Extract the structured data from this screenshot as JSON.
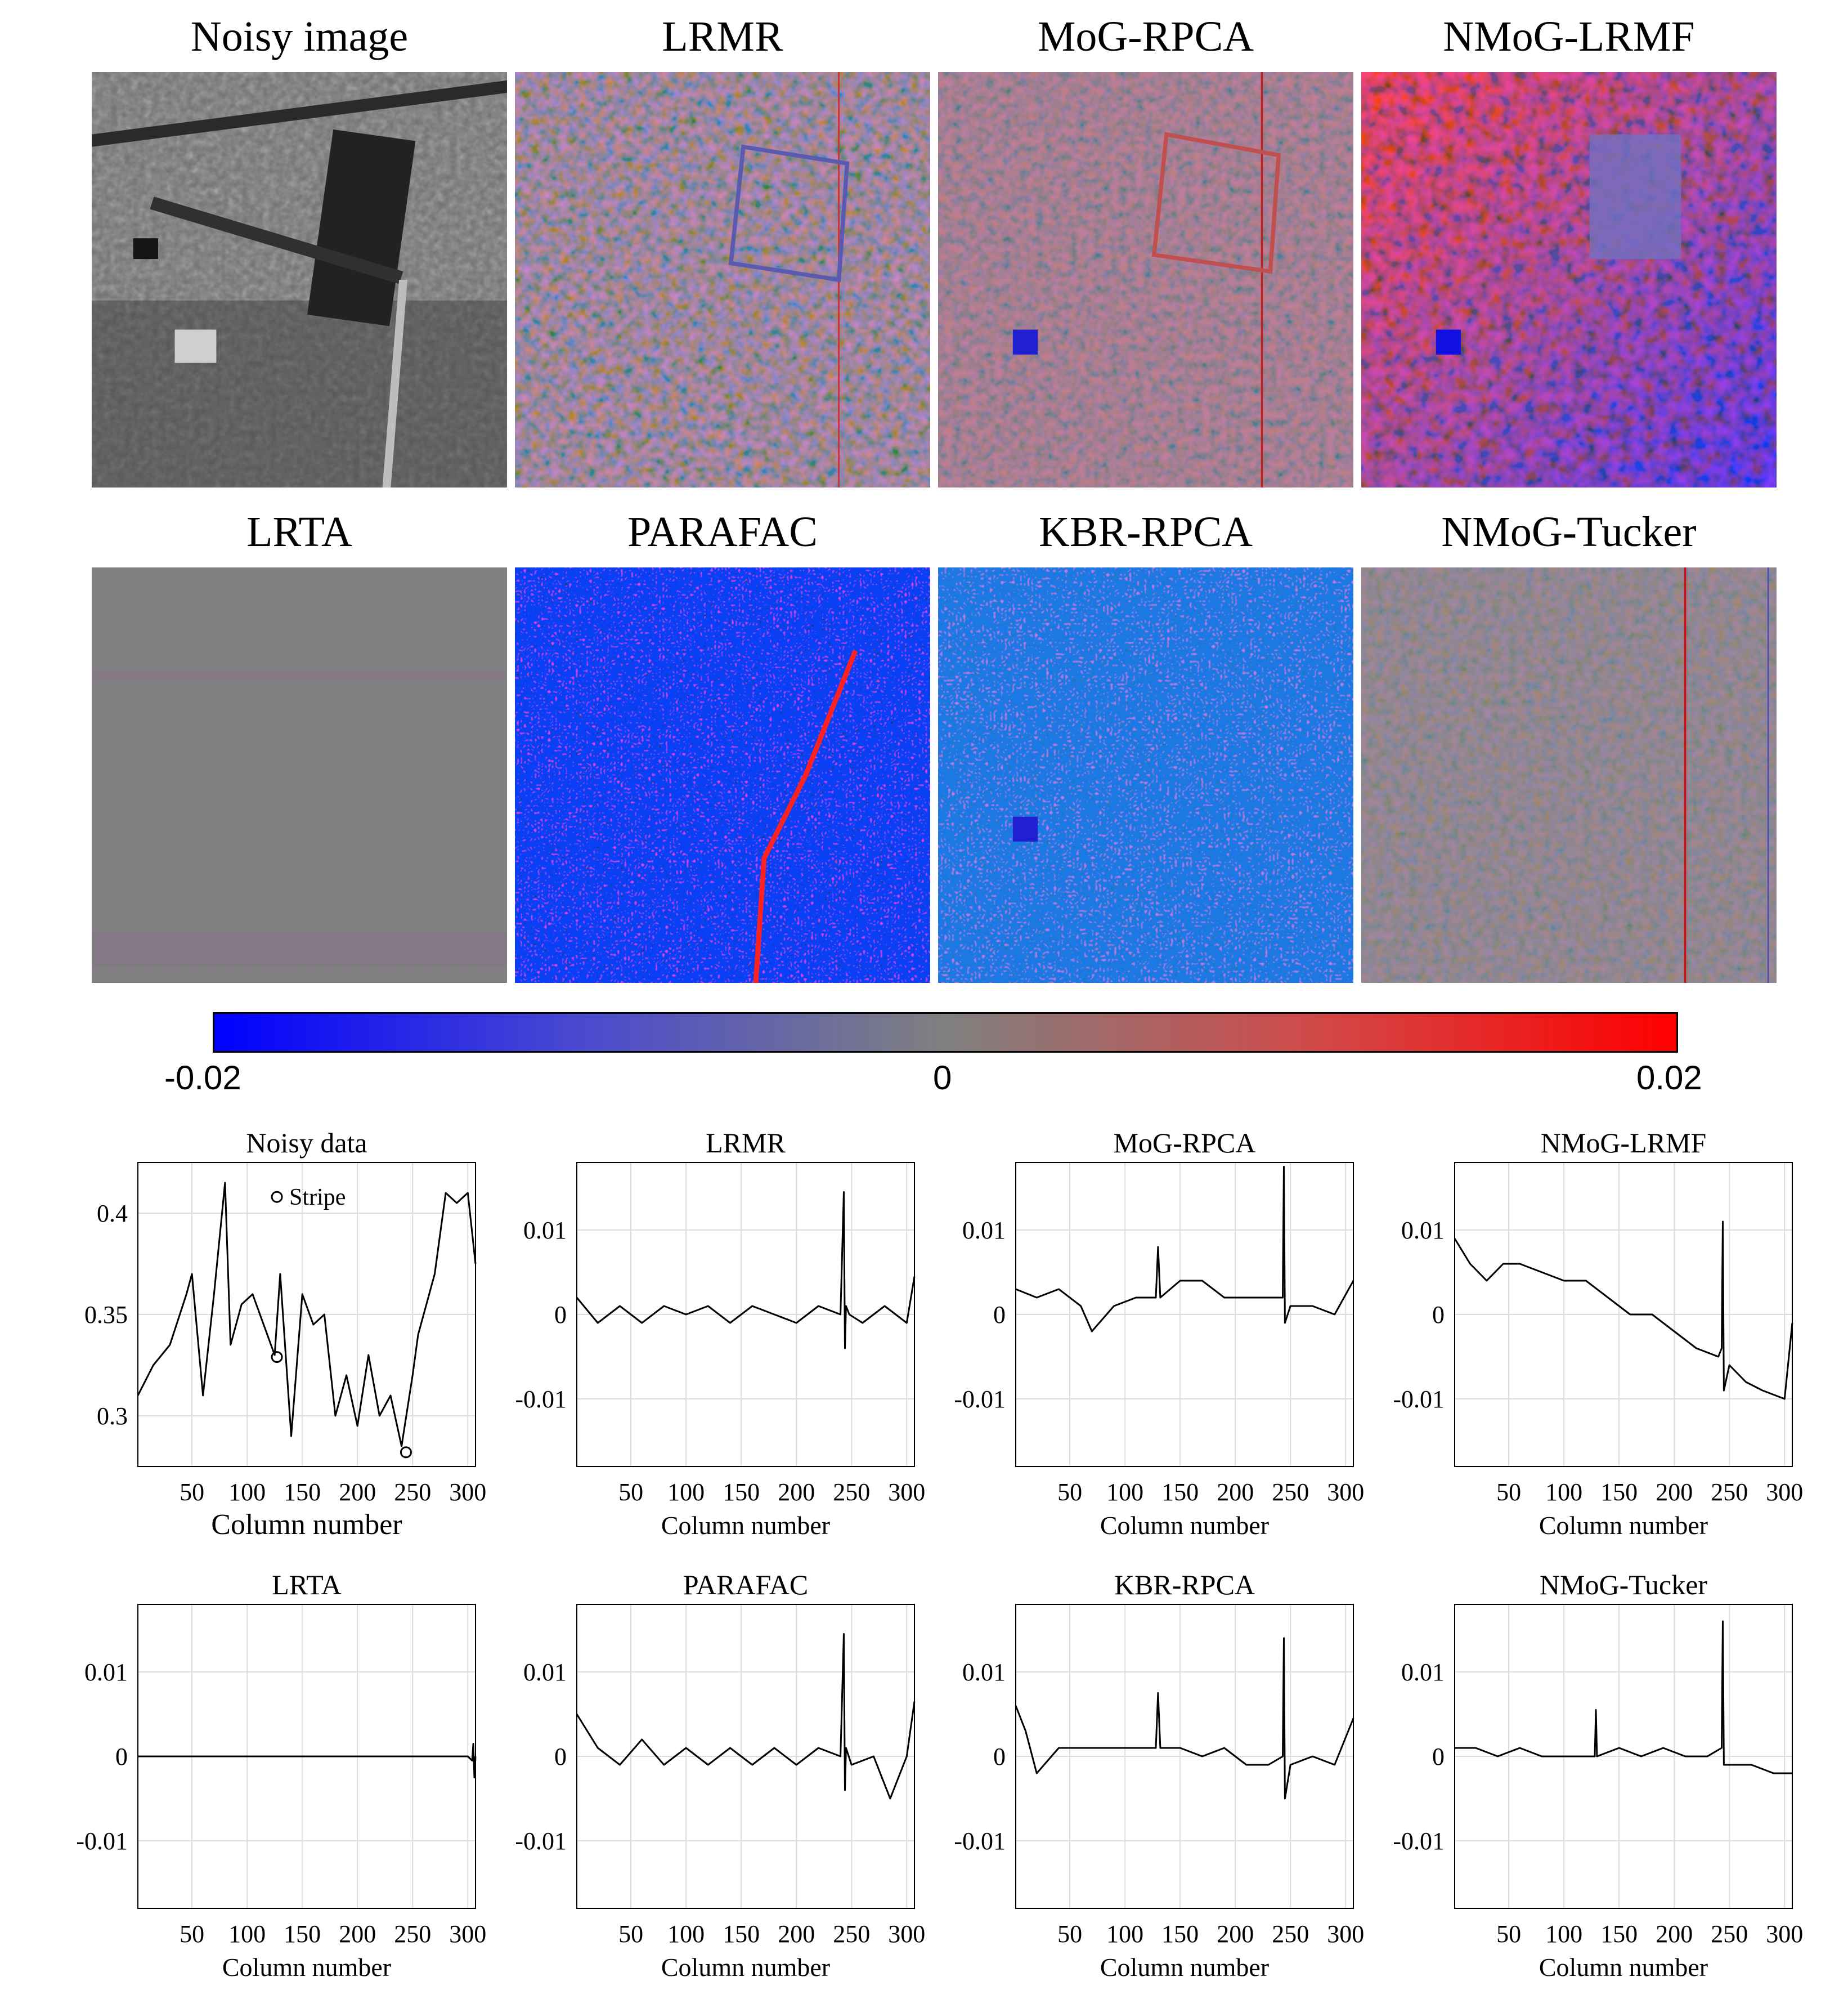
{
  "image_panels": [
    {
      "title": "Noisy image",
      "kind": "gray"
    },
    {
      "title": "LRMR",
      "kind": "mixed"
    },
    {
      "title": "MoG-RPCA",
      "kind": "reddish"
    },
    {
      "title": "NMoG-LRMF",
      "kind": "strong"
    },
    {
      "title": "LRTA",
      "kind": "flat"
    },
    {
      "title": "PARAFAC",
      "kind": "noisy"
    },
    {
      "title": "KBR-RPCA",
      "kind": "noisy2"
    },
    {
      "title": "NMoG-Tucker",
      "kind": "faint"
    }
  ],
  "colorbar": {
    "min_label": "-0.02",
    "mid_label": "0",
    "max_label": "0.02",
    "colors": [
      "#0000ff",
      "#808080",
      "#ff0000"
    ]
  },
  "chart_data": [
    {
      "type": "line",
      "title": "Noisy data",
      "xlabel": "Column number",
      "xlim": [
        1,
        307
      ],
      "ylim": [
        0.275,
        0.425
      ],
      "yticks": [
        0.3,
        0.35,
        0.4
      ],
      "ytick_labels": [
        "0.3",
        "0.35",
        "0.4"
      ],
      "xticks": [
        50,
        100,
        150,
        200,
        250,
        300
      ],
      "x": [
        1,
        15,
        30,
        45,
        50,
        60,
        70,
        80,
        85,
        95,
        105,
        115,
        125,
        130,
        140,
        150,
        160,
        170,
        180,
        190,
        200,
        210,
        220,
        230,
        240,
        250,
        255,
        270,
        280,
        290,
        300,
        307
      ],
      "values": [
        0.31,
        0.325,
        0.335,
        0.36,
        0.37,
        0.31,
        0.36,
        0.415,
        0.335,
        0.355,
        0.36,
        0.345,
        0.33,
        0.37,
        0.29,
        0.36,
        0.345,
        0.35,
        0.3,
        0.32,
        0.295,
        0.33,
        0.3,
        0.31,
        0.285,
        0.32,
        0.34,
        0.37,
        0.41,
        0.405,
        0.41,
        0.375
      ],
      "legend": "Stripe",
      "stripe_markers": [
        {
          "x": 127,
          "y": 0.329
        },
        {
          "x": 244,
          "y": 0.282
        }
      ]
    },
    {
      "type": "line",
      "title": "LRMR",
      "xlabel": "Column number",
      "xlim": [
        1,
        307
      ],
      "ylim": [
        -0.018,
        0.018
      ],
      "yticks": [
        -0.01,
        0,
        0.01
      ],
      "ytick_labels": [
        "-0.01",
        "0",
        "0.01"
      ],
      "xticks": [
        50,
        100,
        150,
        200,
        250,
        300
      ],
      "x": [
        1,
        20,
        40,
        60,
        80,
        100,
        120,
        140,
        160,
        180,
        200,
        220,
        240,
        243,
        244,
        245,
        248,
        260,
        280,
        300,
        307
      ],
      "values": [
        0.002,
        -0.001,
        0.001,
        -0.001,
        0.001,
        0.0,
        0.001,
        -0.001,
        0.001,
        0.0,
        -0.001,
        0.001,
        0.0,
        0.0145,
        -0.004,
        0.001,
        0.0,
        -0.001,
        0.001,
        -0.001,
        0.0045
      ]
    },
    {
      "type": "line",
      "title": "MoG-RPCA",
      "xlabel": "Column number",
      "xlim": [
        1,
        307
      ],
      "ylim": [
        -0.018,
        0.018
      ],
      "yticks": [
        -0.01,
        0,
        0.01
      ],
      "ytick_labels": [
        "-0.01",
        "0",
        "0.01"
      ],
      "xticks": [
        50,
        100,
        150,
        200,
        250,
        300
      ],
      "x": [
        1,
        20,
        40,
        60,
        70,
        90,
        110,
        128,
        130,
        132,
        150,
        170,
        190,
        210,
        243,
        244,
        245,
        250,
        270,
        290,
        307
      ],
      "values": [
        0.003,
        0.002,
        0.003,
        0.001,
        -0.002,
        0.001,
        0.002,
        0.002,
        0.008,
        0.002,
        0.004,
        0.004,
        0.002,
        0.002,
        0.002,
        0.0175,
        -0.001,
        0.001,
        0.001,
        0.0,
        0.004
      ]
    },
    {
      "type": "line",
      "title": "NMoG-LRMF",
      "xlabel": "Column number",
      "xlim": [
        1,
        307
      ],
      "ylim": [
        -0.018,
        0.018
      ],
      "yticks": [
        -0.01,
        0,
        0.01
      ],
      "ytick_labels": [
        "-0.01",
        "0",
        "0.01"
      ],
      "xticks": [
        50,
        100,
        150,
        200,
        250,
        300
      ],
      "x": [
        1,
        15,
        30,
        45,
        60,
        80,
        100,
        120,
        140,
        160,
        180,
        200,
        220,
        240,
        243,
        244,
        245,
        250,
        265,
        280,
        300,
        307
      ],
      "values": [
        0.009,
        0.006,
        0.004,
        0.006,
        0.006,
        0.005,
        0.004,
        0.004,
        0.002,
        0.0,
        0.0,
        -0.002,
        -0.004,
        -0.005,
        -0.004,
        0.011,
        -0.009,
        -0.006,
        -0.008,
        -0.009,
        -0.01,
        -0.001
      ]
    },
    {
      "type": "line",
      "title": "LRTA",
      "xlabel": "Column number",
      "xlim": [
        1,
        307
      ],
      "ylim": [
        -0.018,
        0.018
      ],
      "yticks": [
        -0.01,
        0,
        0.01
      ],
      "ytick_labels": [
        "-0.01",
        "0",
        "0.01"
      ],
      "xticks": [
        50,
        100,
        150,
        200,
        250,
        300
      ],
      "x": [
        1,
        50,
        100,
        150,
        200,
        250,
        300,
        304,
        305,
        306,
        307
      ],
      "values": [
        0.0,
        0.0,
        0.0,
        0.0,
        0.0,
        0.0,
        0.0,
        -0.0005,
        0.0015,
        -0.0025,
        0.0
      ]
    },
    {
      "type": "line",
      "title": "PARAFAC",
      "xlabel": "Column number",
      "xlim": [
        1,
        307
      ],
      "ylim": [
        -0.018,
        0.018
      ],
      "yticks": [
        -0.01,
        0,
        0.01
      ],
      "ytick_labels": [
        "-0.01",
        "0",
        "0.01"
      ],
      "xticks": [
        50,
        100,
        150,
        200,
        250,
        300
      ],
      "x": [
        1,
        20,
        40,
        60,
        80,
        100,
        120,
        140,
        160,
        180,
        200,
        220,
        240,
        243,
        244,
        245,
        250,
        270,
        285,
        300,
        307
      ],
      "values": [
        0.005,
        0.001,
        -0.001,
        0.002,
        -0.001,
        0.001,
        -0.001,
        0.001,
        -0.001,
        0.001,
        -0.001,
        0.001,
        0.0,
        0.0145,
        -0.004,
        0.001,
        -0.001,
        0.0,
        -0.005,
        0.0,
        0.0065
      ]
    },
    {
      "type": "line",
      "title": "KBR-RPCA",
      "xlabel": "Column number",
      "xlim": [
        1,
        307
      ],
      "ylim": [
        -0.018,
        0.018
      ],
      "yticks": [
        -0.01,
        0,
        0.01
      ],
      "ytick_labels": [
        "-0.01",
        "0",
        "0.01"
      ],
      "xticks": [
        50,
        100,
        150,
        200,
        250,
        300
      ],
      "x": [
        1,
        10,
        20,
        40,
        60,
        80,
        100,
        128,
        130,
        132,
        150,
        170,
        190,
        210,
        230,
        243,
        244,
        245,
        250,
        270,
        290,
        307
      ],
      "values": [
        0.006,
        0.003,
        -0.002,
        0.001,
        0.001,
        0.001,
        0.001,
        0.001,
        0.0075,
        0.001,
        0.001,
        0.0,
        0.001,
        -0.001,
        -0.001,
        0.0,
        0.014,
        -0.005,
        -0.001,
        0.0,
        -0.001,
        0.0045
      ]
    },
    {
      "type": "line",
      "title": "NMoG-Tucker",
      "xlabel": "Column number",
      "xlim": [
        1,
        307
      ],
      "ylim": [
        -0.018,
        0.018
      ],
      "yticks": [
        -0.01,
        0,
        0.01
      ],
      "ytick_labels": [
        "-0.01",
        "0",
        "0.01"
      ],
      "xticks": [
        50,
        100,
        150,
        200,
        250,
        300
      ],
      "x": [
        1,
        20,
        40,
        60,
        80,
        100,
        120,
        128,
        129,
        130,
        150,
        170,
        190,
        210,
        230,
        243,
        244,
        245,
        250,
        270,
        290,
        307
      ],
      "values": [
        0.001,
        0.001,
        0.0,
        0.001,
        0.0,
        0.0,
        0.0,
        0.0,
        0.0055,
        0.0,
        0.001,
        0.0,
        0.001,
        0.0,
        0.0,
        0.001,
        0.016,
        -0.001,
        -0.001,
        -0.001,
        -0.002,
        -0.002
      ]
    }
  ]
}
